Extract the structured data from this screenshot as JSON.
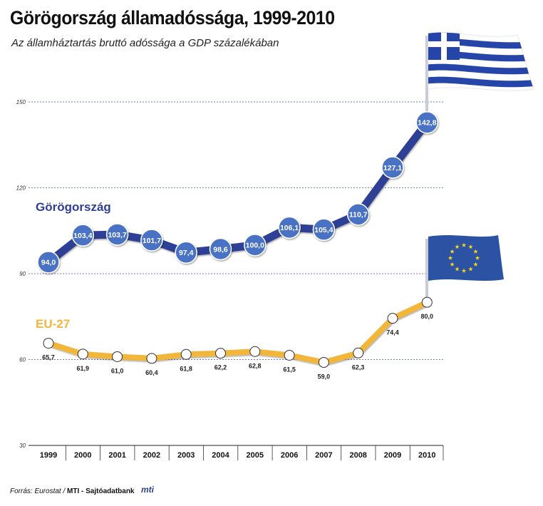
{
  "title": "Görögország államadóssága, 1999-2010",
  "subtitle": "Az államháztartás bruttó adóssága a GDP százalékában",
  "source": {
    "prefix": "Forrás: Eurostat /",
    "agency": "MTI - Sajtóadatbank",
    "logo_text": "mti"
  },
  "colors": {
    "greece_line": "#2f3f95",
    "greece_marker": "#4a72c4",
    "eu_line": "#f2b63a",
    "gridline": "#3b4f9a",
    "flag_blue": "#2546a8",
    "eu_flag_blue": "#2c52a3",
    "eu_star": "#f6d21f"
  },
  "flags": [
    {
      "name": "greece-flag-icon"
    },
    {
      "name": "eu-flag-icon"
    }
  ],
  "chart_data": {
    "type": "line",
    "title": "Görögország államadóssága, 1999-2010",
    "subtitle": "Az államháztartás bruttó adóssága a GDP százalékában",
    "xlabel": "",
    "ylabel": "",
    "categories": [
      "1999",
      "2000",
      "2001",
      "2002",
      "2003",
      "2004",
      "2005",
      "2006",
      "2007",
      "2008",
      "2009",
      "2010"
    ],
    "yticks": [
      30,
      60,
      90,
      120,
      150
    ],
    "ylim": [
      30,
      150
    ],
    "grid": true,
    "series": [
      {
        "name": "Görögország",
        "values": [
          94.0,
          103.4,
          103.7,
          101.7,
          97.4,
          98.6,
          100.0,
          106.1,
          105.4,
          110.7,
          127.1,
          142.8
        ],
        "labels": [
          "94,0",
          "103,4",
          "103,7",
          "101,7",
          "97,4",
          "98,6",
          "100,0",
          "106,1",
          "105,4",
          "110,7",
          "127,1",
          "142,8"
        ]
      },
      {
        "name": "EU-27",
        "values": [
          65.7,
          61.9,
          61.0,
          60.4,
          61.8,
          62.2,
          62.8,
          61.5,
          59.0,
          62.3,
          74.4,
          80.0
        ],
        "labels": [
          "65,7",
          "61,9",
          "61,0",
          "60,4",
          "61,8",
          "62,2",
          "62,8",
          "61,5",
          "59,0",
          "62,3",
          "74,4",
          "80,0"
        ]
      }
    ]
  }
}
